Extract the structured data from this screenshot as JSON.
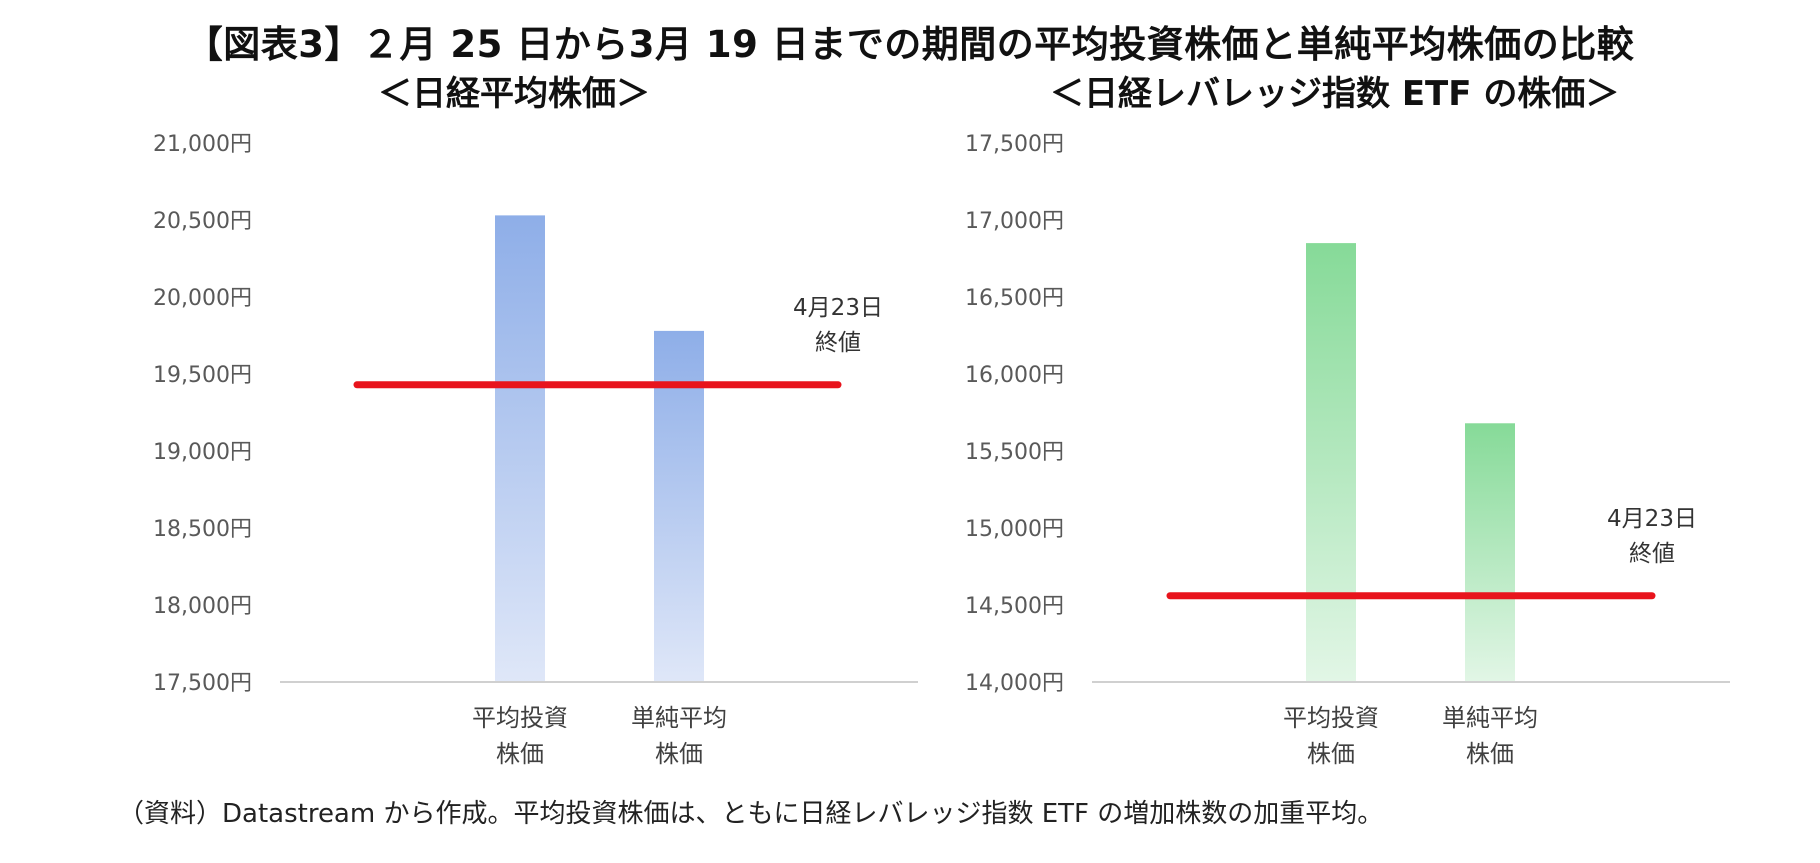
{
  "figure": {
    "title": "【図表3】２月 25 日から3月 19 日までの期間の平均投資株価と単純平均株価の比較",
    "footnote": "（資料）Datastream から作成。平均投資株価は、ともに日経レバレッジ指数 ETF の増加株数の加重平均。"
  },
  "chart_data": [
    {
      "type": "bar",
      "title": "＜日経平均株価＞",
      "categories": [
        [
          "平均投資",
          "株価"
        ],
        [
          "単純平均",
          "株価"
        ]
      ],
      "values": [
        20530,
        19780
      ],
      "ylim": [
        17500,
        21000
      ],
      "yticks": [
        17500,
        18000,
        18500,
        19000,
        19500,
        20000,
        20500,
        21000
      ],
      "tick_labels": [
        "17,500円",
        "18,000円",
        "18,500円",
        "19,000円",
        "19,500円",
        "20,000円",
        "20,500円",
        "21,000円"
      ],
      "reference_line": {
        "value": 19430,
        "label": [
          "4月23日",
          "終値"
        ],
        "color": "#e8141c"
      },
      "bar_color_top": "#8eaee8",
      "bar_color_bottom": "#dfe7f8",
      "grid": false
    },
    {
      "type": "bar",
      "title": "＜日経レバレッジ指数 ETF の株価＞",
      "categories": [
        [
          "平均投資",
          "株価"
        ],
        [
          "単純平均",
          "株価"
        ]
      ],
      "values": [
        16850,
        15680
      ],
      "ylim": [
        14000,
        17500
      ],
      "yticks": [
        14000,
        14500,
        15000,
        15500,
        16000,
        16500,
        17000,
        17500
      ],
      "tick_labels": [
        "14,000円",
        "14,500円",
        "15,000円",
        "15,500円",
        "16,000円",
        "16,500円",
        "17,000円",
        "17,500円"
      ],
      "reference_line": {
        "value": 14560,
        "label": [
          "4月23日",
          "終値"
        ],
        "color": "#e8141c"
      },
      "bar_color_top": "#86da98",
      "bar_color_bottom": "#e2f6e6",
      "grid": false
    }
  ]
}
